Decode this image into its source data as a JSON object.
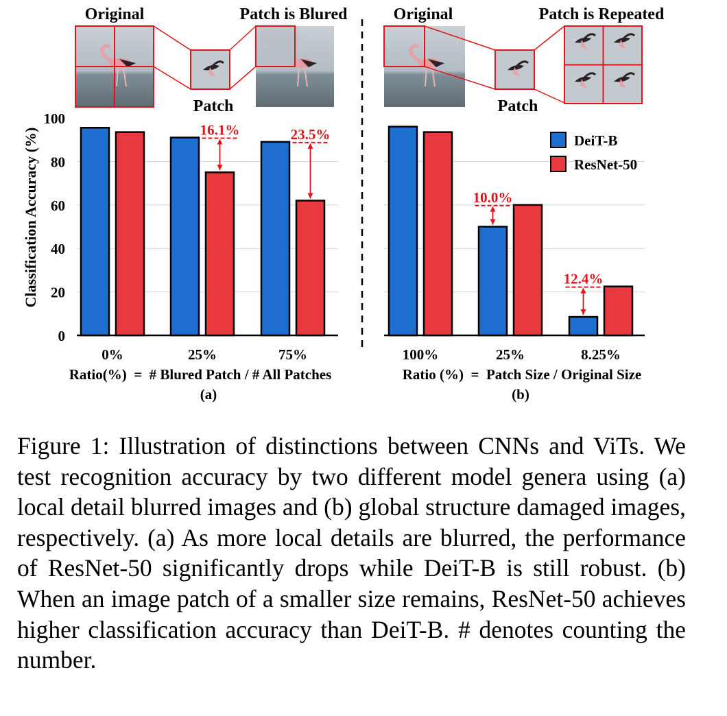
{
  "panel_a": {
    "original_label": "Original",
    "patch_label": "Patch",
    "transformed_label": "Patch is Blured",
    "xlabel": "Ratio(%)  =  # Blured Patch / # All Patches",
    "sub_label": "(a)"
  },
  "panel_b": {
    "original_label": "Original",
    "patch_label": "Patch",
    "transformed_label": "Patch is Repeated",
    "xlabel": "Ratio (%)  =  Patch Size / Original Size",
    "sub_label": "(b)"
  },
  "y_axis_label": "Classification  Accuracy (%)",
  "colors": {
    "deit": "#1f6fd1",
    "resnet": "#e8393f",
    "annotation": "#e0141c",
    "photo_frame": "#e0141c"
  },
  "chart_data": [
    {
      "type": "bar",
      "panel": "(a)",
      "categories": [
        "0%",
        "25%",
        "75%"
      ],
      "series": [
        {
          "name": "DeiT-B",
          "values": [
            95.5,
            91,
            89
          ]
        },
        {
          "name": "ResNet-50",
          "values": [
            93.5,
            75,
            62
          ]
        }
      ],
      "annotations": [
        "",
        "16.1%",
        "23.5%"
      ],
      "ylabel": "Classification  Accuracy (%)",
      "xlabel": "Ratio(%)  =  # Blured Patch / # All Patches",
      "ylim": [
        0,
        100
      ],
      "yticks": [
        0,
        20,
        40,
        60,
        80,
        100
      ],
      "grid": true
    },
    {
      "type": "bar",
      "panel": "(b)",
      "categories": [
        "100%",
        "25%",
        "8.25%"
      ],
      "series": [
        {
          "name": "DeiT-B",
          "values": [
            96,
            50,
            8.5
          ]
        },
        {
          "name": "ResNet-50",
          "values": [
            93.5,
            60,
            22.5
          ]
        }
      ],
      "annotations": [
        "",
        "10.0%",
        "12.4%"
      ],
      "legend": [
        "DeiT-B",
        "ResNet-50"
      ],
      "legend_position": "top-right",
      "xlabel": "Ratio (%)  =  Patch Size / Original Size",
      "ylim": [
        0,
        100
      ],
      "grid": true
    }
  ],
  "caption": "Figure 1: Illustration of distinctions between CNNs and ViTs. We test recognition accuracy by two different model genera using (a) local detail blurred images and (b) global structure damaged images, respectively. (a) As more local details are blurred, the performance of ResNet-50 signifi­cantly drops while DeiT-B is still robust. (b) When an image patch of a smaller size remains, ResNet-50 achieves higher classification accuracy than DeiT-B. # denotes counting the number."
}
